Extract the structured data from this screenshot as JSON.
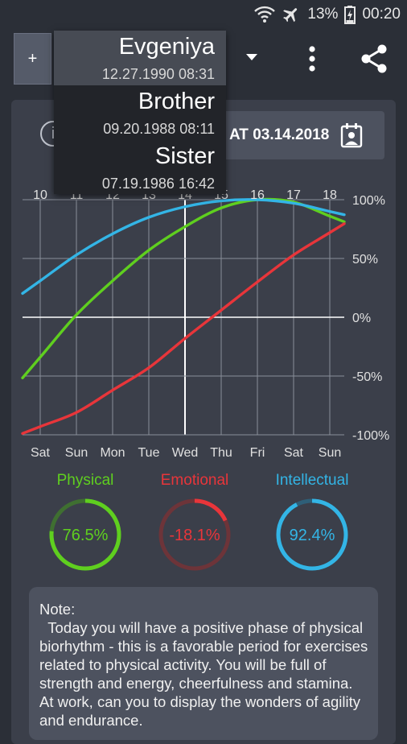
{
  "status_bar": {
    "battery": "13%",
    "time": "00:20"
  },
  "toolbar": {
    "add_label": "+"
  },
  "profiles": [
    {
      "name": "Evgeniya",
      "birth": "12.27.1990 08:31",
      "selected": true
    },
    {
      "name": "Brother",
      "birth": "09.20.1988 08:11",
      "selected": false
    },
    {
      "name": "Sister",
      "birth": "07.19.1986 16:42",
      "selected": false
    }
  ],
  "info_label": "i",
  "date_button": {
    "label": "AT 03.14.2018"
  },
  "chart_data": {
    "type": "line",
    "x": [
      10,
      11,
      12,
      13,
      14,
      15,
      16,
      17,
      18
    ],
    "day_numbers": [
      "10",
      "11",
      "12",
      "13",
      "14",
      "15",
      "16",
      "17",
      "18"
    ],
    "weekdays": [
      "Sat",
      "Sun",
      "Mon",
      "Tue",
      "Wed",
      "Thu",
      "Fri",
      "Sat",
      "Sun"
    ],
    "y_ticks": [
      "100%",
      "50%",
      "0%",
      "-50%",
      "-100%"
    ],
    "ylim": [
      -100,
      100
    ],
    "current_day": 14,
    "series": [
      {
        "name": "Physical",
        "color": "#5fcf1f",
        "values": [
          -34,
          2,
          31,
          57,
          77,
          93,
          100,
          98,
          86
        ]
      },
      {
        "name": "Emotional",
        "color": "#e8353a",
        "values": [
          -93,
          -81,
          -62,
          -43,
          -18,
          6,
          30,
          53,
          72
        ]
      },
      {
        "name": "Intellectual",
        "color": "#33b5e6",
        "values": [
          31,
          53,
          71,
          85,
          94,
          99,
          100,
          97,
          90
        ]
      }
    ]
  },
  "legend": [
    {
      "label": "Physical",
      "value": "76.5%",
      "fraction": 0.765,
      "color": "#5fcf1f",
      "track": "#3f6f31"
    },
    {
      "label": "Emotional",
      "value": "-18.1%",
      "fraction": 0.181,
      "color": "#e8353a",
      "track": "#6d3439"
    },
    {
      "label": "Intellectual",
      "value": "92.4%",
      "fraction": 0.924,
      "color": "#33b5e6",
      "track": "#2e5f78"
    }
  ],
  "note": {
    "title": "Note:",
    "text": "  Today you will have a positive phase of physical biorhythm - this is a favorable period for exercises related to physical activity. You will be full of strength and energy, cheerfulness and stamina. At work, can you to display the wonders of agility and endurance."
  }
}
